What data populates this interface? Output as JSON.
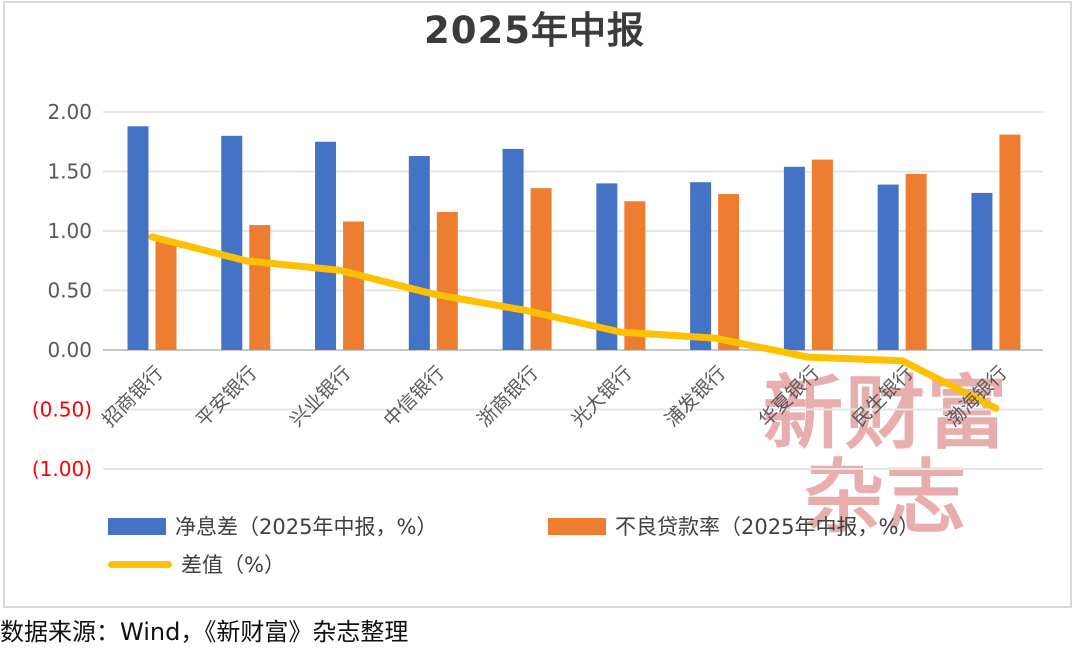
{
  "chart_data": {
    "type": "bar",
    "subtype": "combo-bar-line",
    "title": "2025年中报",
    "categories": [
      "招商银行",
      "平安银行",
      "兴业银行",
      "中信银行",
      "浙商银行",
      "光大银行",
      "浦发银行",
      "华夏银行",
      "民生银行",
      "渤海银行"
    ],
    "series": [
      {
        "name": "净息差（2025年中报，%）",
        "type": "bar",
        "color": "#4472C4",
        "values": [
          1.88,
          1.8,
          1.75,
          1.63,
          1.69,
          1.4,
          1.41,
          1.54,
          1.39,
          1.32
        ]
      },
      {
        "name": "不良贷款率（2025年中报，%）",
        "type": "bar",
        "color": "#ED7D31",
        "values": [
          0.93,
          1.05,
          1.08,
          1.16,
          1.36,
          1.25,
          1.31,
          1.6,
          1.48,
          1.81
        ]
      },
      {
        "name": "差值（%）",
        "type": "line",
        "color": "#FFC000",
        "values": [
          0.95,
          0.75,
          0.67,
          0.47,
          0.33,
          0.15,
          0.1,
          -0.06,
          -0.09,
          -0.49
        ]
      }
    ],
    "y_axis": {
      "range": [
        -1.0,
        2.0
      ],
      "tick_color": "#595959",
      "negative_color": "#FF0000",
      "ticks": [
        {
          "label": "2.00",
          "value": 2.0,
          "negative": false
        },
        {
          "label": "1.50",
          "value": 1.5,
          "negative": false
        },
        {
          "label": "1.00",
          "value": 1.0,
          "negative": false
        },
        {
          "label": "0.50",
          "value": 0.5,
          "negative": false
        },
        {
          "label": "0.00",
          "value": 0.0,
          "negative": false
        },
        {
          "label": "(0.50)",
          "value": -0.5,
          "negative": true
        },
        {
          "label": "(1.00)",
          "value": -1.0,
          "negative": true
        }
      ]
    },
    "category_label_color": "#595959",
    "grid": true,
    "gridline_color": "#E5E5E5",
    "baseline_color": "#C8C8C8",
    "legend_position": "bottom"
  },
  "watermark": {
    "line1": "新财富",
    "line2": "杂志",
    "color": "rgba(203,73,73,0.45)"
  },
  "footer": {
    "source": "数据来源：Wind，《新财富》杂志整理"
  }
}
